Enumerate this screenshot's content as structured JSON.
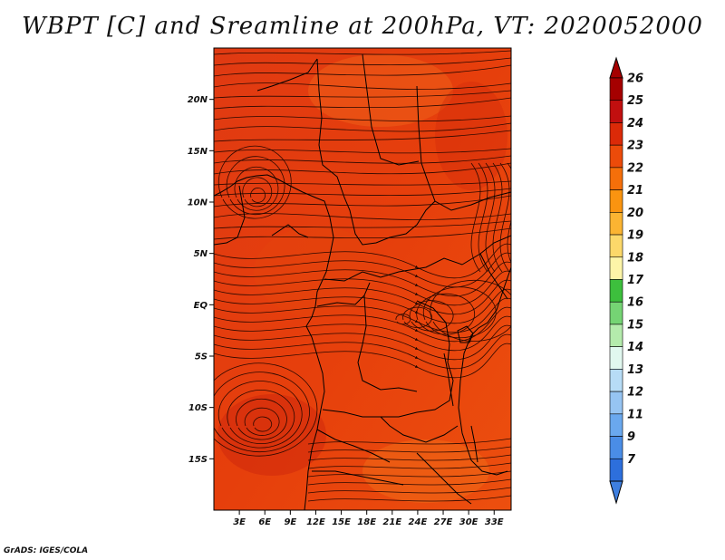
{
  "title": "WBPT [C] and Sreamline at 200hPa, VT: 2020052000",
  "credit": "GrADS: IGES/COLA",
  "map": {
    "lon_range": [
      0,
      35
    ],
    "lat_range": [
      -20,
      25
    ],
    "lat_ticks": [
      {
        "value": 20,
        "label": "20N"
      },
      {
        "value": 15,
        "label": "15N"
      },
      {
        "value": 10,
        "label": "10N"
      },
      {
        "value": 5,
        "label": "5N"
      },
      {
        "value": 0,
        "label": "EQ"
      },
      {
        "value": -5,
        "label": "5S"
      },
      {
        "value": -10,
        "label": "10S"
      },
      {
        "value": -15,
        "label": "15S"
      }
    ],
    "lon_ticks": [
      {
        "value": 3,
        "label": "3E"
      },
      {
        "value": 6,
        "label": "6E"
      },
      {
        "value": 9,
        "label": "9E"
      },
      {
        "value": 12,
        "label": "12E"
      },
      {
        "value": 15,
        "label": "15E"
      },
      {
        "value": 18,
        "label": "18E"
      },
      {
        "value": 21,
        "label": "21E"
      },
      {
        "value": 24,
        "label": "24E"
      },
      {
        "value": 27,
        "label": "27E"
      },
      {
        "value": 30,
        "label": "30E"
      },
      {
        "value": 33,
        "label": "33E"
      }
    ]
  },
  "colorbar": {
    "levels": [
      {
        "label": "26",
        "color": "#a50000"
      },
      {
        "label": "25",
        "color": "#c10f0f"
      },
      {
        "label": "24",
        "color": "#db2a08"
      },
      {
        "label": "23",
        "color": "#ec4b0a"
      },
      {
        "label": "22",
        "color": "#f56f0a"
      },
      {
        "label": "21",
        "color": "#fa9410"
      },
      {
        "label": "20",
        "color": "#fbb432"
      },
      {
        "label": "19",
        "color": "#fcd86a"
      },
      {
        "label": "18",
        "color": "#fdf5a8"
      },
      {
        "label": "17",
        "color": "#3dbf3d"
      },
      {
        "label": "16",
        "color": "#75d474"
      },
      {
        "label": "15",
        "color": "#b4ebac"
      },
      {
        "label": "14",
        "color": "#e1f8ef"
      },
      {
        "label": "13",
        "color": "#b7dcf6"
      },
      {
        "label": "12",
        "color": "#96c4f2"
      },
      {
        "label": "11",
        "color": "#6aa8ee"
      },
      {
        "label": "9",
        "color": "#4a8de6"
      },
      {
        "label": "7",
        "color": "#2d6fdc"
      }
    ],
    "bottom_color": "#3e7fe0"
  }
}
